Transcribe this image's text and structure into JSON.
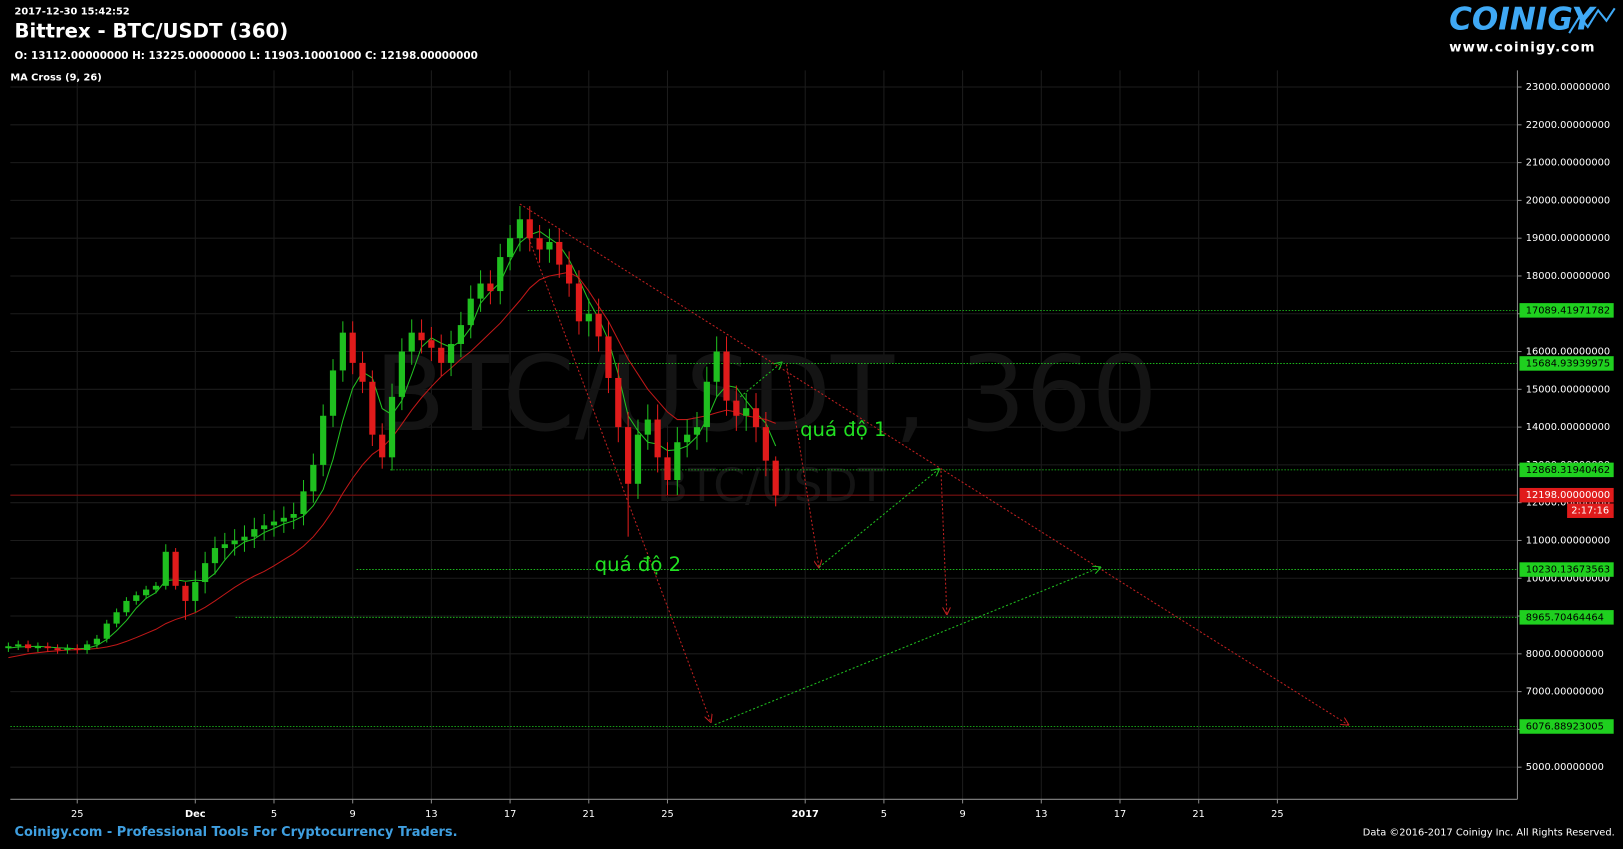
{
  "chart_data": {
    "type": "candlestick",
    "timestamp": "2017-12-30 15:42:52",
    "title": "Bittrex - BTC/USDT (360)",
    "ohlc_text": "O: 13112.00000000 H: 13225.00000000 L: 11903.10001000 C: 12198.00000000",
    "indicator": "MA Cross (9, 26)",
    "watermark": "BTC/USDT, 360",
    "watermark_small": "BTC/USDT",
    "logo": {
      "brand": "COINIGY",
      "url": "www.coinigy.com"
    },
    "footer_left": "Coinigy.com - Professional Tools For Cryptocurrency Traders.",
    "footer_right": "Data ©2016-2017 Coinigy Inc. All Rights Reserved.",
    "up_color": "#1fbf1f",
    "down_color": "#e01b1b",
    "grid": true,
    "xlim": [
      21.6,
      98.2
    ],
    "ylim": [
      4150,
      23440
    ],
    "xticks": [
      25,
      {
        "value": 31,
        "label": "Dec"
      },
      {
        "value": 35,
        "label": "5"
      },
      {
        "value": 39,
        "label": "9"
      },
      {
        "value": 43,
        "label": "13"
      },
      {
        "value": 47,
        "label": "17"
      },
      {
        "value": 51,
        "label": "21"
      },
      {
        "value": 55,
        "label": "25"
      },
      {
        "value": 62,
        "label": "2017"
      },
      {
        "value": 66,
        "label": "5"
      },
      {
        "value": 70,
        "label": "9"
      },
      {
        "value": 74,
        "label": "13"
      },
      {
        "value": 78,
        "label": "17"
      },
      {
        "value": 82,
        "label": "21"
      },
      {
        "value": 86,
        "label": "25"
      }
    ],
    "yticks": [
      {
        "value": 5000,
        "label": "5000.00000000"
      },
      {
        "value": 6000,
        "label": "6000.00000000"
      },
      {
        "value": 7000,
        "label": "7000.00000000"
      },
      {
        "value": 8000,
        "label": "8000.00000000"
      },
      {
        "value": 9000,
        "label": "9000.00000000"
      },
      {
        "value": 10000,
        "label": "10000.00000000"
      },
      {
        "value": 11000,
        "label": "11000.00000000"
      },
      {
        "value": 12000,
        "label": "12000.00000000"
      },
      {
        "value": 13000,
        "label": "13000.00000000"
      },
      {
        "value": 14000,
        "label": "14000.00000000"
      },
      {
        "value": 15000,
        "label": "15000.00000000"
      },
      {
        "value": 16000,
        "label": "16000.00000000"
      },
      {
        "value": 17000,
        "label": "17000.00000000"
      },
      {
        "value": 18000,
        "label": "18000.00000000"
      },
      {
        "value": 19000,
        "label": "19000.00000000"
      },
      {
        "value": 20000,
        "label": "20000.00000000"
      },
      {
        "value": 21000,
        "label": "21000.00000000"
      },
      {
        "value": 22000,
        "label": "22000.00000000"
      },
      {
        "value": 23000,
        "label": "23000.00000000"
      }
    ],
    "x": [
      21.5,
      22,
      22.5,
      23,
      23.5,
      24,
      24.5,
      25,
      25.5,
      26,
      26.5,
      27,
      27.5,
      28,
      28.5,
      29,
      29.5,
      30,
      30.5,
      31,
      31.5,
      32,
      32.5,
      33,
      33.5,
      34,
      34.5,
      35,
      35.5,
      36,
      36.5,
      37,
      37.5,
      38,
      38.5,
      39,
      39.5,
      40,
      40.5,
      41,
      41.5,
      42,
      42.5,
      43,
      43.5,
      44,
      44.5,
      45,
      45.5,
      46,
      46.5,
      47,
      47.5,
      48,
      48.5,
      49,
      49.5,
      50,
      50.5,
      51,
      51.5,
      52,
      52.5,
      53,
      53.5,
      54,
      54.5,
      55,
      55.5,
      56,
      56.5,
      57,
      57.5,
      58,
      58.5,
      59,
      59.5,
      60,
      60.5
    ],
    "open": [
      8150,
      8200,
      8250,
      8150,
      8200,
      8150,
      8100,
      8150,
      8100,
      8250,
      8400,
      8800,
      9100,
      9400,
      9550,
      9700,
      9800,
      10700,
      9800,
      9400,
      9900,
      10400,
      10800,
      10900,
      11000,
      11100,
      11300,
      11400,
      11500,
      11600,
      11700,
      12300,
      13000,
      14300,
      15500,
      16500,
      15700,
      15200,
      13800,
      13200,
      14800,
      16000,
      16500,
      16300,
      16100,
      15700,
      16200,
      16700,
      17400,
      17800,
      17600,
      18500,
      19000,
      19500,
      19000,
      18700,
      18900,
      18300,
      17800,
      16800,
      17000,
      16400,
      15300,
      14000,
      12500,
      13800,
      14200,
      13200,
      12600,
      13600,
      13800,
      14000,
      15200,
      16000,
      14700,
      14300,
      14500,
      14000,
      13112
    ],
    "high": [
      8300,
      8350,
      8350,
      8300,
      8300,
      8250,
      8250,
      8250,
      8350,
      8500,
      8900,
      9200,
      9500,
      9650,
      9800,
      9900,
      10900,
      10800,
      9900,
      10200,
      10700,
      11100,
      11200,
      11300,
      11400,
      11600,
      11700,
      11800,
      11900,
      12000,
      12600,
      13300,
      14600,
      15800,
      16800,
      16800,
      16000,
      15500,
      14100,
      15150,
      16350,
      16850,
      16850,
      16650,
      16450,
      16550,
      17050,
      17750,
      18150,
      18150,
      18850,
      19350,
      19850,
      19850,
      19350,
      19250,
      19250,
      18650,
      18150,
      17400,
      17400,
      16800,
      15700,
      14400,
      14200,
      14600,
      14600,
      13600,
      14000,
      14200,
      14400,
      15600,
      16400,
      16400,
      15100,
      14900,
      14900,
      14400,
      13225
    ],
    "low": [
      8050,
      8100,
      8050,
      8050,
      8050,
      8000,
      8000,
      8000,
      8000,
      8150,
      8300,
      8700,
      9000,
      9300,
      9450,
      9600,
      9700,
      9700,
      8900,
      9100,
      9600,
      10100,
      10500,
      10600,
      10700,
      10800,
      11000,
      11100,
      11200,
      11300,
      11400,
      12000,
      12700,
      14000,
      15200,
      15400,
      14900,
      13500,
      12900,
      12850,
      14450,
      15650,
      15950,
      15750,
      15350,
      15350,
      15850,
      16350,
      17050,
      17250,
      17250,
      18150,
      18650,
      18650,
      18350,
      18350,
      17950,
      17450,
      16450,
      16400,
      16000,
      14900,
      13600,
      11100,
      12100,
      13400,
      12800,
      12200,
      12200,
      13200,
      13400,
      13600,
      14800,
      14300,
      13900,
      13900,
      13600,
      12700,
      11903.10001
    ],
    "close": [
      8200,
      8250,
      8150,
      8200,
      8150,
      8100,
      8150,
      8100,
      8250,
      8400,
      8800,
      9100,
      9400,
      9550,
      9700,
      9800,
      10700,
      9800,
      9400,
      9900,
      10400,
      10800,
      10900,
      11000,
      11100,
      11300,
      11400,
      11500,
      11600,
      11700,
      12300,
      13000,
      14300,
      15500,
      16500,
      15700,
      15200,
      13800,
      13200,
      14800,
      16000,
      16500,
      16300,
      16100,
      15700,
      16200,
      16700,
      17400,
      17800,
      17600,
      18500,
      19000,
      19500,
      19000,
      18700,
      18900,
      18300,
      17800,
      16800,
      17000,
      16400,
      15300,
      14000,
      12500,
      13800,
      14200,
      13200,
      12600,
      13600,
      13800,
      14000,
      15200,
      16000,
      14700,
      14300,
      14500,
      14000,
      13112,
      12198
    ],
    "ma_series": [
      {
        "color": "#22c022",
        "values": [
          8150,
          8180,
          8190,
          8200,
          8180,
          8160,
          8150,
          8130,
          8150,
          8220,
          8380,
          8610,
          8880,
          9210,
          9470,
          9620,
          9940,
          9960,
          9920,
          9950,
          9930,
          10130,
          10480,
          10780,
          10960,
          11040,
          11210,
          11320,
          11440,
          11520,
          11650,
          11920,
          12350,
          13150,
          14180,
          15030,
          15460,
          15300,
          14490,
          14330,
          14700,
          15390,
          16120,
          16360,
          16220,
          16110,
          16280,
          16630,
          17280,
          17580,
          17830,
          18400,
          18880,
          19090,
          19180,
          19000,
          18820,
          18430,
          17910,
          17340,
          16880,
          16300,
          15400,
          14300,
          13900,
          13600,
          13550,
          13380,
          13400,
          13500,
          13750,
          14200,
          14800,
          15100,
          15050,
          14700,
          14380,
          14100,
          13500
        ]
      },
      {
        "color": "#c01818",
        "values": [
          7900,
          7950,
          8000,
          8030,
          8060,
          8080,
          8100,
          8110,
          8120,
          8140,
          8180,
          8240,
          8330,
          8430,
          8540,
          8650,
          8800,
          8910,
          8990,
          9090,
          9230,
          9400,
          9580,
          9760,
          9920,
          10060,
          10180,
          10330,
          10490,
          10650,
          10850,
          11100,
          11420,
          11800,
          12250,
          12650,
          13000,
          13280,
          13460,
          13720,
          14080,
          14450,
          14780,
          15070,
          15340,
          15560,
          15800,
          16000,
          16250,
          16500,
          16750,
          17050,
          17350,
          17680,
          17900,
          18000,
          18050,
          18100,
          17950,
          17600,
          17200,
          16800,
          16300,
          15800,
          15400,
          15000,
          14700,
          14400,
          14200,
          14200,
          14250,
          14300,
          14380,
          14450,
          14400,
          14300,
          14250,
          14200,
          14100
        ]
      }
    ],
    "levels": {
      "color": "#1fd01f",
      "values": [
        17089.41971782,
        15684.93939975,
        12868.31940462,
        10230.13673563,
        8965.70464464,
        6076.88923005
      ],
      "value_labels": [
        "17089.41971782",
        "15684.93939975",
        "12868.31940462",
        "10230.13673563",
        "8965.70464464",
        "6076.88923005"
      ],
      "x_start": [
        47.9,
        50,
        40.9,
        39.2,
        33.05,
        21.6
      ]
    },
    "current_price": {
      "value": 12198,
      "label": "12198.00000000",
      "countdown": "2:17:16",
      "color": "#e01b1b"
    },
    "trendlines": [
      {
        "color": "#c02020",
        "x": [
          47.5,
          89.6
        ],
        "y": [
          19904,
          6123
        ]
      },
      {
        "color": "#c02020",
        "x": [
          47.95,
          57.2
        ],
        "y": [
          19000,
          6200
        ]
      },
      {
        "color": "#c02020",
        "x": [
          61.05,
          62.7
        ],
        "y": [
          15660,
          10290
        ]
      },
      {
        "color": "#c02020",
        "x": [
          68.9,
          69.2
        ],
        "y": [
          12840,
          9050
        ]
      },
      {
        "color": "#1fc01f",
        "x": [
          57.4,
          77.0
        ],
        "y": [
          6123,
          10290
        ]
      },
      {
        "color": "#1fc01f",
        "x": [
          62.7,
          68.8
        ],
        "y": [
          10290,
          12890
        ]
      },
      {
        "color": "#1fc01f",
        "x": [
          58.7,
          60.8
        ],
        "y": [
          14800,
          15710
        ]
      }
    ],
    "annotations": [
      {
        "text": "quá độ 1",
        "x": 61.74,
        "y": 13904,
        "color": "#22e022"
      },
      {
        "text": "quá độ 2",
        "x": 51.3,
        "y": 10342,
        "color": "#22e022"
      }
    ]
  }
}
